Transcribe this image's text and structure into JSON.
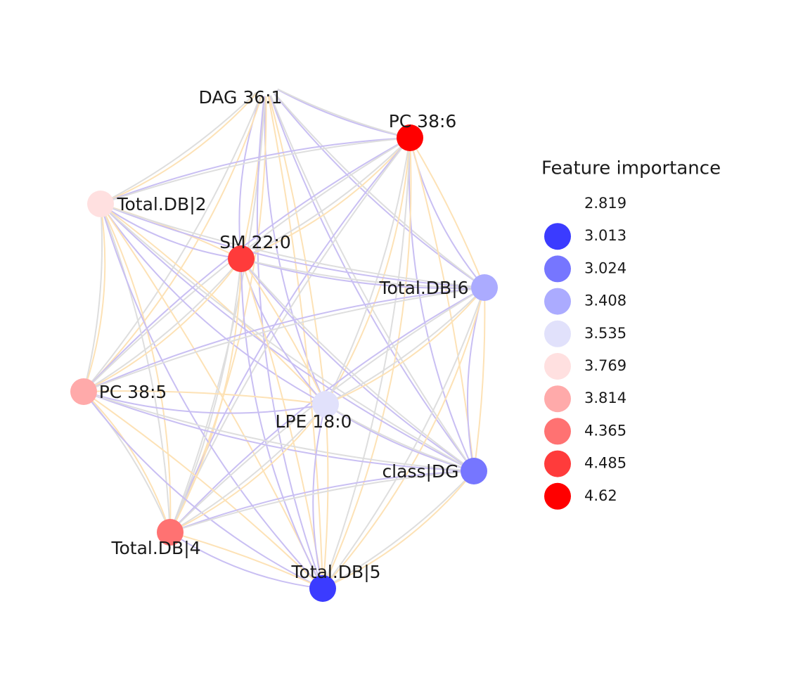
{
  "nodes": [
    {
      "label": "DAG 36:1",
      "importance": 2.819
    },
    {
      "label": "PC 38:6",
      "importance": 4.62
    },
    {
      "label": "Total.DB|2",
      "importance": 3.769
    },
    {
      "label": "SM 22:0",
      "importance": 4.485
    },
    {
      "label": "Total.DB|6",
      "importance": 3.408
    },
    {
      "label": "PC 38:5",
      "importance": 3.814
    },
    {
      "label": "LPE 18:0",
      "importance": 3.535
    },
    {
      "label": "class|DG",
      "importance": 3.024
    },
    {
      "label": "Total.DB|4",
      "importance": 4.365
    },
    {
      "label": "Total.DB|5",
      "importance": 3.013
    }
  ],
  "legend": {
    "title": "Feature importance",
    "items": [
      {
        "value": 2.819,
        "color": "#ffffff"
      },
      {
        "value": 3.013,
        "color": "#3b3bff"
      },
      {
        "value": 3.024,
        "color": "#7676ff"
      },
      {
        "value": 3.408,
        "color": "#ababff"
      },
      {
        "value": 3.535,
        "color": "#e1e1fb"
      },
      {
        "value": 3.769,
        "color": "#ffe0e0"
      },
      {
        "value": 3.814,
        "color": "#ffaaaa"
      },
      {
        "value": 4.365,
        "color": "#ff7272"
      },
      {
        "value": 4.485,
        "color": "#ff3b3b"
      },
      {
        "value": 4.62,
        "color": "#ff0000"
      }
    ]
  }
}
